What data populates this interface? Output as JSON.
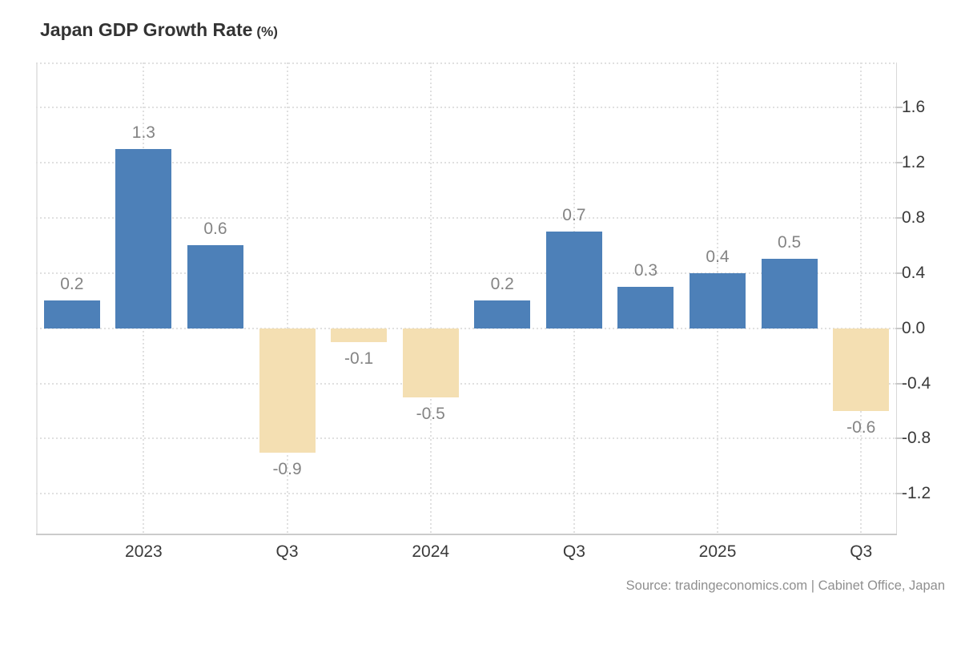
{
  "title": {
    "main": "Japan GDP Growth Rate",
    "unit": "(%)"
  },
  "source_note": "Source: tradingeconomics.com | Cabinet Office, Japan",
  "colors": {
    "positive_bar": "#4d80b8",
    "negative_bar": "#f4dfb2",
    "gridline": "#e0e0e0",
    "bottom_axis": "#cbcbcb",
    "right_axis": "#d9d9d9",
    "value_label": "#848484",
    "tick_label": "#3a3a3a",
    "source_text": "#8f8f8f",
    "background": "#ffffff"
  },
  "chart_data": {
    "type": "bar",
    "title": "Japan GDP Growth Rate (%)",
    "categories": [
      "",
      "2023",
      "",
      "Q3",
      "",
      "2024",
      "",
      "Q3",
      "",
      "2025",
      "",
      "Q3"
    ],
    "values": [
      0.2,
      1.3,
      0.6,
      -0.9,
      -0.1,
      -0.5,
      0.2,
      0.7,
      0.3,
      0.4,
      0.5,
      -0.6
    ],
    "bar_labels": [
      "0.2",
      "1.3",
      "0.6",
      "-0.9",
      "-0.1",
      "-0.5",
      "0.2",
      "0.7",
      "0.3",
      "0.4",
      "0.5",
      "-0.6"
    ],
    "x_tick_labels": [
      {
        "slot": 2,
        "label": "2023"
      },
      {
        "slot": 4,
        "label": "Q3"
      },
      {
        "slot": 6,
        "label": "2024"
      },
      {
        "slot": 8,
        "label": "Q3"
      },
      {
        "slot": 10,
        "label": "2025"
      },
      {
        "slot": 12,
        "label": "Q3"
      }
    ],
    "y_ticks": [
      {
        "value": 1.6,
        "label": "1.6"
      },
      {
        "value": 1.2,
        "label": "1.2"
      },
      {
        "value": 0.8,
        "label": "0.8"
      },
      {
        "value": 0.4,
        "label": "0.4"
      },
      {
        "value": 0.0,
        "label": "0.0"
      },
      {
        "value": -0.4,
        "label": "-0.4"
      },
      {
        "value": -0.8,
        "label": "-0.8"
      },
      {
        "value": -1.2,
        "label": "-1.2"
      }
    ],
    "ylim": [
      -1.5,
      1.925
    ],
    "grid": "dotted, horizontal at every y tick and vertical at labeled x slots",
    "legend": null,
    "xlabel": "",
    "ylabel": "%"
  }
}
